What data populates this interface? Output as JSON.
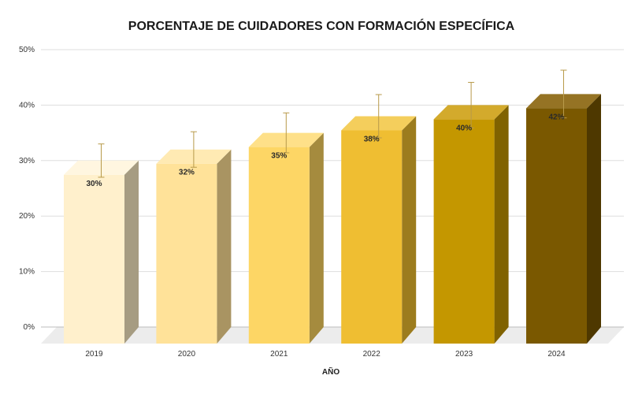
{
  "chart_data": {
    "type": "bar",
    "title": "PORCENTAJE DE CUIDADORES CON FORMACIÓN ESPECÍFICA",
    "xlabel": "AÑO",
    "ylabel": "",
    "categories": [
      "2019",
      "2020",
      "2021",
      "2022",
      "2023",
      "2024"
    ],
    "values": [
      30,
      32,
      35,
      38,
      40,
      42
    ],
    "data_labels": [
      "30%",
      "32%",
      "35%",
      "38%",
      "40%",
      "42%"
    ],
    "error_upper": [
      33,
      35.2,
      38.6,
      41.9,
      44.1,
      46.3
    ],
    "error_lower": [
      27,
      28.8,
      31.4,
      34.1,
      35.9,
      37.7
    ],
    "ylim": [
      0,
      50
    ],
    "yticks": [
      0,
      10,
      20,
      30,
      40,
      50
    ],
    "ytick_labels": [
      "0%",
      "10%",
      "20%",
      "30%",
      "40%",
      "50%"
    ],
    "grid": true,
    "style": "3d-column",
    "colors": [
      "#FFF0CC",
      "#FFE299",
      "#FDD665",
      "#EFBE32",
      "#C49700",
      "#7A5800"
    ],
    "side_colors": [
      "#A69C82",
      "#A99462",
      "#A58B3E",
      "#9C7C1E",
      "#806200",
      "#4E3800"
    ],
    "top_colors": [
      "#FFF6E0",
      "#FFEAB3",
      "#FEE089",
      "#F4CE5C",
      "#D3AA2C",
      "#957324"
    ],
    "error_bar_color": "#B89A4A"
  }
}
